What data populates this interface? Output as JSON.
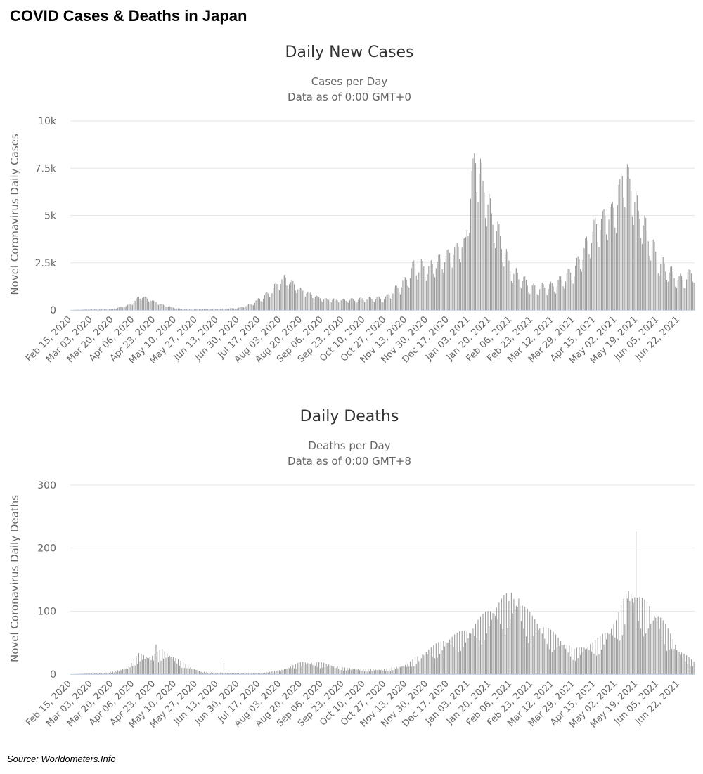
{
  "page": {
    "title": "COVID Cases & Deaths in Japan",
    "source": "Source:  Worldometers.Info"
  },
  "chart_data": [
    {
      "type": "bar",
      "title": "Daily New Cases",
      "subtitle_lines": [
        "Cases per Day",
        "Data as of 0:00 GMT+0"
      ],
      "ylabel": "Novel Coronavirus Daily Cases",
      "ylim": [
        0,
        10000
      ],
      "yticks": [
        0,
        2500,
        5000,
        7500,
        10000
      ],
      "ytick_labels": [
        "0",
        "2.5k",
        "5k",
        "7.5k",
        "10k"
      ],
      "x_start": "2020-02-15",
      "x_end": "2021-07-04",
      "xtick_labels": [
        "Feb 15, 2020",
        "Mar 03, 2020",
        "Mar 20, 2020",
        "Apr 06, 2020",
        "Apr 23, 2020",
        "May 10, 2020",
        "May 27, 2020",
        "Jun 13, 2020",
        "Jun 30, 2020",
        "Jul 17, 2020",
        "Aug 03, 2020",
        "Aug 20, 2020",
        "Sep 06, 2020",
        "Sep 23, 2020",
        "Oct 10, 2020",
        "Oct 27, 2020",
        "Nov 13, 2020",
        "Nov 30, 2020",
        "Dec 17, 2020",
        "Jan 03, 2021",
        "Jan 20, 2021",
        "Feb 06, 2021",
        "Feb 23, 2021",
        "Mar 12, 2021",
        "Mar 29, 2021",
        "Apr 15, 2021",
        "May 02, 2021",
        "May 19, 2021",
        "Jun 05, 2021",
        "Jun 22, 2021"
      ],
      "grid": true,
      "bar_color": "#9a9a9a",
      "anchors": [
        [
          "2020-02-15",
          5
        ],
        [
          "2020-03-03",
          30
        ],
        [
          "2020-03-20",
          50
        ],
        [
          "2020-03-31",
          200
        ],
        [
          "2020-04-06",
          400
        ],
        [
          "2020-04-11",
          720
        ],
        [
          "2020-04-16",
          600
        ],
        [
          "2020-04-23",
          420
        ],
        [
          "2020-05-01",
          230
        ],
        [
          "2020-05-10",
          90
        ],
        [
          "2020-05-20",
          30
        ],
        [
          "2020-06-01",
          40
        ],
        [
          "2020-06-13",
          50
        ],
        [
          "2020-06-30",
          100
        ],
        [
          "2020-07-10",
          300
        ],
        [
          "2020-07-25",
          850
        ],
        [
          "2020-08-03",
          1500
        ],
        [
          "2020-08-07",
          1600
        ],
        [
          "2020-08-20",
          1000
        ],
        [
          "2020-09-06",
          550
        ],
        [
          "2020-09-23",
          500
        ],
        [
          "2020-10-10",
          550
        ],
        [
          "2020-10-27",
          600
        ],
        [
          "2020-11-13",
          1500
        ],
        [
          "2020-11-20",
          2300
        ],
        [
          "2020-11-30",
          2100
        ],
        [
          "2020-12-17",
          2800
        ],
        [
          "2020-12-31",
          3500
        ],
        [
          "2021-01-07",
          7700
        ],
        [
          "2021-01-09",
          7600
        ],
        [
          "2021-01-14",
          6500
        ],
        [
          "2021-01-20",
          5000
        ],
        [
          "2021-02-06",
          2000
        ],
        [
          "2021-02-23",
          1100
        ],
        [
          "2021-03-12",
          1200
        ],
        [
          "2021-03-29",
          2000
        ],
        [
          "2021-04-15",
          4200
        ],
        [
          "2021-05-02",
          5300
        ],
        [
          "2021-05-08",
          7200
        ],
        [
          "2021-05-13",
          6500
        ],
        [
          "2021-05-19",
          5200
        ],
        [
          "2021-06-05",
          2500
        ],
        [
          "2021-06-22",
          1500
        ],
        [
          "2021-06-30",
          1700
        ],
        [
          "2021-07-04",
          2100
        ]
      ]
    },
    {
      "type": "bar",
      "title": "Daily Deaths",
      "subtitle_lines": [
        "Deaths per Day",
        "Data as of 0:00 GMT+8"
      ],
      "ylabel": "Novel Coronavirus Daily Deaths",
      "ylim": [
        0,
        300
      ],
      "yticks": [
        0,
        100,
        200,
        300
      ],
      "ytick_labels": [
        "0",
        "100",
        "200",
        "300"
      ],
      "x_start": "2020-02-15",
      "x_end": "2021-07-04",
      "xtick_labels": [
        "Feb 15, 2020",
        "Mar 03, 2020",
        "Mar 20, 2020",
        "Apr 06, 2020",
        "Apr 23, 2020",
        "May 10, 2020",
        "May 27, 2020",
        "Jun 13, 2020",
        "Jun 30, 2020",
        "Jul 17, 2020",
        "Aug 03, 2020",
        "Aug 20, 2020",
        "Sep 06, 2020",
        "Sep 23, 2020",
        "Oct 10, 2020",
        "Oct 27, 2020",
        "Nov 13, 2020",
        "Nov 30, 2020",
        "Dec 17, 2020",
        "Jan 03, 2021",
        "Jan 20, 2021",
        "Feb 06, 2021",
        "Feb 23, 2021",
        "Mar 12, 2021",
        "Mar 29, 2021",
        "Apr 15, 2021",
        "May 02, 2021",
        "May 19, 2021",
        "Jun 05, 2021",
        "Jun 22, 2021"
      ],
      "grid": true,
      "bar_color": "#9a9a9a",
      "anchors": [
        [
          "2020-02-15",
          0
        ],
        [
          "2020-03-03",
          1
        ],
        [
          "2020-03-20",
          3
        ],
        [
          "2020-04-01",
          8
        ],
        [
          "2020-04-10",
          25
        ],
        [
          "2020-04-20",
          22
        ],
        [
          "2020-04-29",
          30
        ],
        [
          "2020-05-10",
          20
        ],
        [
          "2020-05-20",
          10
        ],
        [
          "2020-05-31",
          3
        ],
        [
          "2020-06-13",
          2
        ],
        [
          "2020-06-30",
          1
        ],
        [
          "2020-07-17",
          1
        ],
        [
          "2020-08-03",
          5
        ],
        [
          "2020-08-20",
          15
        ],
        [
          "2020-09-06",
          14
        ],
        [
          "2020-09-23",
          8
        ],
        [
          "2020-10-10",
          6
        ],
        [
          "2020-10-27",
          6
        ],
        [
          "2020-11-13",
          12
        ],
        [
          "2020-11-30",
          30
        ],
        [
          "2020-12-17",
          45
        ],
        [
          "2021-01-03",
          55
        ],
        [
          "2021-01-20",
          80
        ],
        [
          "2021-02-06",
          100
        ],
        [
          "2021-02-23",
          70
        ],
        [
          "2021-03-12",
          50
        ],
        [
          "2021-03-29",
          30
        ],
        [
          "2021-04-15",
          40
        ],
        [
          "2021-05-02",
          65
        ],
        [
          "2021-05-13",
          110
        ],
        [
          "2021-05-19",
          95
        ],
        [
          "2021-06-05",
          75
        ],
        [
          "2021-06-22",
          30
        ],
        [
          "2021-07-04",
          15
        ]
      ],
      "spikes": [
        [
          "2020-04-24",
          47
        ],
        [
          "2020-06-18",
          18
        ],
        [
          "2021-05-18",
          226
        ],
        [
          "2021-05-11",
          120
        ],
        [
          "2021-02-12",
          120
        ],
        [
          "2021-02-04",
          116
        ]
      ]
    }
  ]
}
